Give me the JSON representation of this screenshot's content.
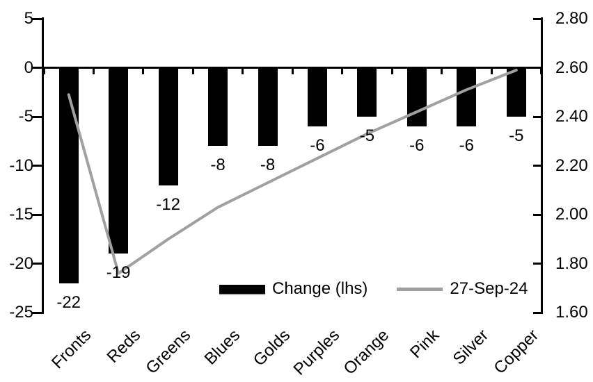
{
  "chart_data": {
    "type": "bar",
    "subtype": "bar-and-line-combo",
    "title": "",
    "categories": [
      "Fronts",
      "Reds",
      "Greens",
      "Blues",
      "Golds",
      "Purples",
      "Orange",
      "Pink",
      "Silver",
      "Copper"
    ],
    "series": [
      {
        "name": "Change (lhs)",
        "type": "bar",
        "axis": "left",
        "color": "#000000",
        "values": [
          -22,
          -19,
          -12,
          -8,
          -8,
          -6,
          -5,
          -6,
          -6,
          -5
        ],
        "data_labels": [
          "-22",
          "-19",
          "-12",
          "-8",
          "-8",
          "-6",
          "-5",
          "-6",
          "-6",
          "-5"
        ]
      },
      {
        "name": "27-Sep-24",
        "type": "line",
        "axis": "right",
        "color": "#a0a0a0",
        "values": [
          2.49,
          1.76,
          1.9,
          2.03,
          2.13,
          2.23,
          2.33,
          2.42,
          2.51,
          2.59
        ]
      }
    ],
    "left_axis": {
      "ticks": [
        "5",
        "0",
        "-5",
        "-10",
        "-15",
        "-20",
        "-25"
      ],
      "tick_values": [
        5,
        0,
        -5,
        -10,
        -15,
        -20,
        -25
      ],
      "min": -25,
      "max": 5
    },
    "right_axis": {
      "ticks": [
        "2.80",
        "2.60",
        "2.40",
        "2.20",
        "2.00",
        "1.80",
        "1.60"
      ],
      "tick_values": [
        2.8,
        2.6,
        2.4,
        2.2,
        2.0,
        1.8,
        1.6
      ],
      "min": 1.6,
      "max": 2.8
    },
    "legend": {
      "position": "inside-bottom-center",
      "items": [
        {
          "label": "Change (lhs)",
          "swatch": "bar",
          "color": "#000000"
        },
        {
          "label": "27-Sep-24",
          "swatch": "line",
          "color": "#a0a0a0"
        }
      ]
    },
    "grid": "off"
  }
}
